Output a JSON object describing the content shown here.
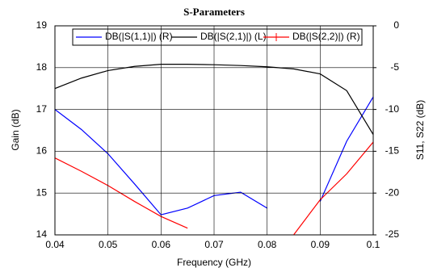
{
  "chart_data": {
    "type": "line",
    "title": "S-Parameters",
    "x_label": "Frequency (GHz)",
    "y_label": "Gain (dB)",
    "y2_label": "S11, S22 (dB)",
    "x": [
      0.04,
      0.045,
      0.05,
      0.055,
      0.06,
      0.065,
      0.07,
      0.075,
      0.08,
      0.085,
      0.09,
      0.095,
      0.1
    ],
    "xlim": [
      0.04,
      0.1
    ],
    "xticks": [
      0.04,
      0.05,
      0.06,
      0.07,
      0.08,
      0.09,
      0.1
    ],
    "ylim": [
      14,
      19
    ],
    "yticks": [
      14,
      15,
      16,
      17,
      18,
      19
    ],
    "y2lim": [
      -25,
      0
    ],
    "y2ticks": [
      -25,
      -20,
      -15,
      -10,
      -5,
      0
    ],
    "grid": true,
    "series": [
      {
        "name": "DB(|S(1,1)|) (R)",
        "color": "#0000ff",
        "axis": "y2",
        "values": [
          -10,
          -12.4,
          -15.3,
          -18.9,
          -22.6,
          -21.8,
          -20.3,
          -19.9,
          -21.8,
          null,
          -21,
          -13.8,
          -8.5
        ]
      },
      {
        "name": "DB(|S(2,1)|) (L)",
        "color": "#000000",
        "values": [
          17.5,
          17.75,
          17.93,
          18.03,
          18.08,
          18.08,
          18.07,
          18.05,
          18.02,
          17.97,
          17.85,
          17.45,
          16.4
        ]
      },
      {
        "name": "DB(|S(2,2)|) (R)",
        "color": "#ff0000",
        "axis": "y2",
        "values": [
          -15.8,
          -17.4,
          -19.1,
          -21,
          -22.8,
          -24.2,
          null,
          null,
          null,
          -25,
          -20.8,
          -17.7,
          -13.9
        ]
      }
    ]
  }
}
